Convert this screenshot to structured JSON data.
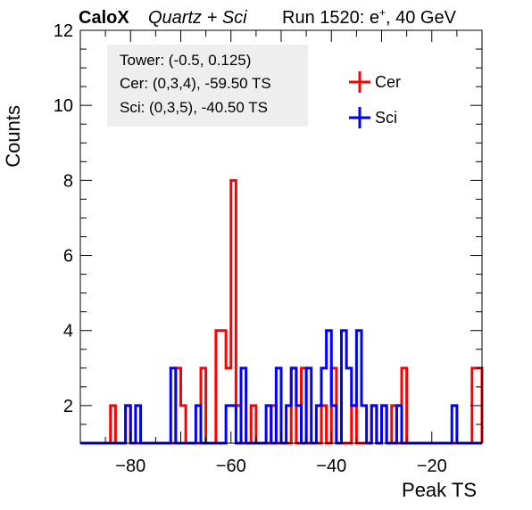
{
  "header": {
    "brand": "CaloX",
    "subtitle": "Quartz + Sci",
    "run_label": "Run 1520: e",
    "run_superscript": "+",
    "run_suffix": ", 40 GeV"
  },
  "annotations": {
    "tower": "Tower: (-0.5, 0.125)",
    "cer_channel": "Cer: (0,3,4), -59.50 TS",
    "sci_channel": "Sci: (0,3,5), -40.50 TS"
  },
  "legend": {
    "placement": "top-right",
    "items": [
      {
        "label": "Cer",
        "color": "#ff0000"
      },
      {
        "label": "Sci",
        "color": "#0000ff"
      }
    ]
  },
  "chart_data": {
    "type": "line",
    "subtype": "step-histogram",
    "xlabel": "Peak TS",
    "ylabel": "Counts",
    "xlim": [
      -90,
      -10
    ],
    "ylim": [
      1,
      12
    ],
    "bin_width": 1,
    "x_ticks": [
      -80,
      -60,
      -40,
      -20
    ],
    "x_tick_labels": [
      "−80",
      "−60",
      "−40",
      "−20"
    ],
    "y_ticks": [
      2,
      4,
      6,
      8,
      10,
      12
    ],
    "y_tick_labels": [
      "2",
      "4",
      "6",
      "8",
      "10",
      "12"
    ],
    "series": [
      {
        "name": "Cer",
        "color": "#ff0000",
        "bins": [
          {
            "x": -84,
            "y": 2
          },
          {
            "x": -81,
            "y": 2
          },
          {
            "x": -71,
            "y": 3
          },
          {
            "x": -70,
            "y": 2
          },
          {
            "x": -66,
            "y": 3
          },
          {
            "x": -63,
            "y": 4
          },
          {
            "x": -62,
            "y": 4
          },
          {
            "x": -61,
            "y": 3
          },
          {
            "x": -60,
            "y": 8
          },
          {
            "x": -59,
            "y": 2
          },
          {
            "x": -56,
            "y": 2
          },
          {
            "x": -52,
            "y": 2
          },
          {
            "x": -48,
            "y": 3
          },
          {
            "x": -46,
            "y": 3
          },
          {
            "x": -42,
            "y": 2
          },
          {
            "x": -40,
            "y": 3
          },
          {
            "x": -36,
            "y": 2
          },
          {
            "x": -32,
            "y": 2
          },
          {
            "x": -30,
            "y": 2
          },
          {
            "x": -28,
            "y": 2
          },
          {
            "x": -26,
            "y": 3
          },
          {
            "x": -12,
            "y": 3
          },
          {
            "x": -11,
            "y": 3
          }
        ]
      },
      {
        "name": "Sci",
        "color": "#0000ff",
        "bins": [
          {
            "x": -81,
            "y": 2
          },
          {
            "x": -79,
            "y": 2
          },
          {
            "x": -72,
            "y": 3
          },
          {
            "x": -67,
            "y": 2
          },
          {
            "x": -61,
            "y": 2
          },
          {
            "x": -60,
            "y": 2
          },
          {
            "x": -58,
            "y": 3
          },
          {
            "x": -53,
            "y": 2
          },
          {
            "x": -51,
            "y": 3
          },
          {
            "x": -49,
            "y": 2
          },
          {
            "x": -48,
            "y": 3
          },
          {
            "x": -47,
            "y": 2
          },
          {
            "x": -45,
            "y": 3
          },
          {
            "x": -43,
            "y": 2
          },
          {
            "x": -42,
            "y": 3
          },
          {
            "x": -41,
            "y": 4
          },
          {
            "x": -40,
            "y": 2
          },
          {
            "x": -38,
            "y": 4
          },
          {
            "x": -37,
            "y": 3
          },
          {
            "x": -36,
            "y": 2
          },
          {
            "x": -35,
            "y": 4
          },
          {
            "x": -34,
            "y": 2
          },
          {
            "x": -32,
            "y": 2
          },
          {
            "x": -30,
            "y": 2
          },
          {
            "x": -27,
            "y": 2
          },
          {
            "x": -16,
            "y": 2
          }
        ]
      }
    ]
  }
}
